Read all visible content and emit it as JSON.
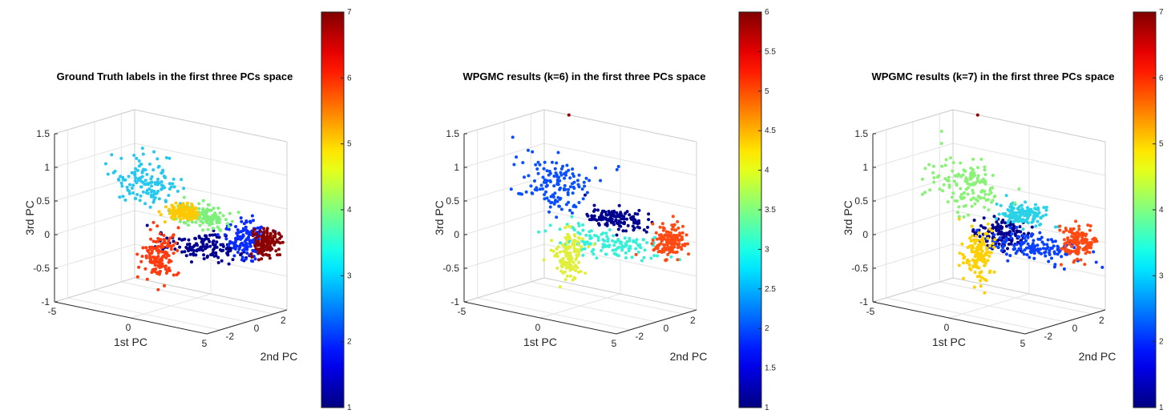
{
  "chart_data": [
    {
      "type": "scatter",
      "title": "Ground Truth labels in the first three PCs space",
      "xlabel": "1st PC",
      "ylabel": "2nd PC",
      "zlabel": "3rd PC",
      "x_ticks": [
        "-5",
        "0",
        "5"
      ],
      "y_ticks": [
        "-2",
        "0",
        "2"
      ],
      "z_ticks": [
        "-1",
        "-0.5",
        "0",
        "0.5",
        "1",
        "1.5"
      ],
      "xlim": [
        -5,
        5
      ],
      "ylim": [
        -3,
        3
      ],
      "zlim": [
        -1,
        1.5
      ],
      "grid": true,
      "colormap": "jet",
      "colorbar": {
        "range": [
          1,
          7
        ],
        "ticks": [
          "1",
          "2",
          "3",
          "4",
          "5",
          "6",
          "7"
        ]
      },
      "clusters": [
        {
          "label": 1,
          "color": "#00008f",
          "center": [
            2.2,
            0.0,
            0.0
          ],
          "spread": [
            1.3,
            0.7,
            0.08
          ]
        },
        {
          "label": 2,
          "color": "#0a2cff",
          "center": [
            4.3,
            0.8,
            0.15
          ],
          "spread": [
            0.5,
            0.4,
            0.15
          ]
        },
        {
          "label": 3,
          "color": "#25c8ee",
          "center": [
            -2.6,
            1.0,
            0.65
          ],
          "spread": [
            1.0,
            0.3,
            0.18
          ]
        },
        {
          "label": 4,
          "color": "#7df07a",
          "center": [
            1.0,
            1.2,
            0.3
          ],
          "spread": [
            0.8,
            0.3,
            0.08
          ]
        },
        {
          "label": 5,
          "color": "#ffc800",
          "center": [
            -0.3,
            1.3,
            0.3
          ],
          "spread": [
            0.4,
            0.3,
            0.05
          ]
        },
        {
          "label": 6,
          "color": "#ff3c10",
          "center": [
            -0.9,
            0.2,
            -0.3
          ],
          "spread": [
            0.4,
            0.4,
            0.18
          ]
        },
        {
          "label": 7,
          "color": "#8b0000",
          "center": [
            5.2,
            1.2,
            0.12
          ],
          "spread": [
            0.2,
            0.4,
            0.1
          ]
        }
      ]
    },
    {
      "type": "scatter",
      "title": "WPGMC results (k=6) in the first three PCs space",
      "xlabel": "1st PC",
      "ylabel": "2nd PC",
      "zlabel": "3rd PC",
      "x_ticks": [
        "-5",
        "0",
        "5"
      ],
      "y_ticks": [
        "-2",
        "0",
        "2"
      ],
      "z_ticks": [
        "-1",
        "-0.5",
        "0",
        "0.5",
        "1",
        "1.5"
      ],
      "xlim": [
        -5,
        5
      ],
      "ylim": [
        -3,
        3
      ],
      "zlim": [
        -1,
        1.5
      ],
      "grid": true,
      "colormap": "jet",
      "colorbar": {
        "range": [
          1,
          6
        ],
        "ticks": [
          "1",
          "1.5",
          "2",
          "2.5",
          "3",
          "3.5",
          "4",
          "4.5",
          "5",
          "5.5",
          "6"
        ]
      },
      "clusters": [
        {
          "label": 1,
          "color": "#00008f",
          "center": [
            1.2,
            1.2,
            0.3
          ],
          "spread": [
            0.8,
            0.3,
            0.08
          ]
        },
        {
          "label": 2,
          "color": "#0a50ff",
          "center": [
            -2.4,
            1.0,
            0.65
          ],
          "spread": [
            1.2,
            0.3,
            0.2
          ]
        },
        {
          "label": 3,
          "color": "#36f0d8",
          "center": [
            2.0,
            0.0,
            0.0
          ],
          "spread": [
            1.6,
            0.8,
            0.08
          ]
        },
        {
          "label": 4,
          "color": "#e0f03a",
          "center": [
            -0.9,
            0.2,
            -0.3
          ],
          "spread": [
            0.4,
            0.4,
            0.18
          ]
        },
        {
          "label": 5,
          "color": "#ff4a14",
          "center": [
            5.0,
            1.0,
            0.12
          ],
          "spread": [
            0.4,
            0.4,
            0.12
          ]
        },
        {
          "label": 6,
          "color": "#8b0000",
          "center": [
            -2.5,
            2.0,
            1.6
          ],
          "spread": [
            0.0,
            0.0,
            0.0
          ]
        }
      ]
    },
    {
      "type": "scatter",
      "title": "WPGMC results (k=7) in the first three PCs space",
      "xlabel": "1st PC",
      "ylabel": "2nd PC",
      "zlabel": "3rd PC",
      "x_ticks": [
        "-5",
        "0",
        "5"
      ],
      "y_ticks": [
        "-2",
        "0",
        "2"
      ],
      "z_ticks": [
        "-1",
        "-0.5",
        "0",
        "0.5",
        "1",
        "1.5"
      ],
      "xlim": [
        -5,
        5
      ],
      "ylim": [
        -3,
        3
      ],
      "zlim": [
        -1,
        1.5
      ],
      "grid": true,
      "colormap": "jet",
      "colorbar": {
        "range": [
          1,
          7
        ],
        "ticks": [
          "1",
          "2",
          "3",
          "4",
          "5",
          "6",
          "7"
        ]
      },
      "clusters": [
        {
          "label": 1,
          "color": "#00008f",
          "center": [
            0.3,
            0.8,
            0.05
          ],
          "spread": [
            0.8,
            0.6,
            0.1
          ]
        },
        {
          "label": 2,
          "color": "#0a40ff",
          "center": [
            2.8,
            0.3,
            0.0
          ],
          "spread": [
            1.4,
            0.8,
            0.08
          ]
        },
        {
          "label": 3,
          "color": "#2ad2e8",
          "center": [
            1.2,
            1.2,
            0.35
          ],
          "spread": [
            0.8,
            0.3,
            0.08
          ]
        },
        {
          "label": 4,
          "color": "#8af276",
          "center": [
            -2.4,
            1.0,
            0.65
          ],
          "spread": [
            1.2,
            0.3,
            0.2
          ]
        },
        {
          "label": 5,
          "color": "#ffd000",
          "center": [
            -0.9,
            0.2,
            -0.3
          ],
          "spread": [
            0.4,
            0.4,
            0.18
          ]
        },
        {
          "label": 6,
          "color": "#ff4a14",
          "center": [
            5.0,
            1.0,
            0.12
          ],
          "spread": [
            0.4,
            0.4,
            0.12
          ]
        },
        {
          "label": 7,
          "color": "#8b0000",
          "center": [
            -2.5,
            2.0,
            1.6
          ],
          "spread": [
            0.0,
            0.0,
            0.0
          ]
        }
      ]
    }
  ]
}
